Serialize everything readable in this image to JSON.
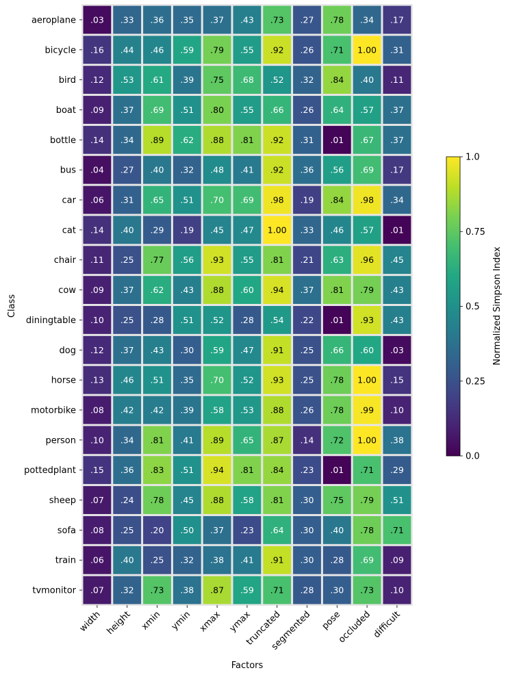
{
  "chart_data": {
    "type": "heatmap",
    "xlabel": "Factors",
    "ylabel": "Class",
    "x_categories": [
      "width",
      "height",
      "xmin",
      "ymin",
      "xmax",
      "ymax",
      "truncated",
      "segmented",
      "pose",
      "occluded",
      "difficult"
    ],
    "y_categories": [
      "aeroplane",
      "bicycle",
      "bird",
      "boat",
      "bottle",
      "bus",
      "car",
      "cat",
      "chair",
      "cow",
      "diningtable",
      "dog",
      "horse",
      "motorbike",
      "person",
      "pottedplant",
      "sheep",
      "sofa",
      "train",
      "tvmonitor"
    ],
    "values": [
      [
        0.03,
        0.33,
        0.36,
        0.35,
        0.37,
        0.43,
        0.73,
        0.27,
        0.78,
        0.34,
        0.17
      ],
      [
        0.16,
        0.44,
        0.46,
        0.59,
        0.79,
        0.55,
        0.92,
        0.26,
        0.71,
        1.0,
        0.31
      ],
      [
        0.12,
        0.53,
        0.61,
        0.39,
        0.75,
        0.68,
        0.52,
        0.32,
        0.84,
        0.4,
        0.11
      ],
      [
        0.09,
        0.37,
        0.69,
        0.51,
        0.8,
        0.55,
        0.66,
        0.26,
        0.64,
        0.57,
        0.37
      ],
      [
        0.14,
        0.34,
        0.89,
        0.62,
        0.88,
        0.81,
        0.92,
        0.31,
        0.01,
        0.67,
        0.37
      ],
      [
        0.04,
        0.27,
        0.4,
        0.32,
        0.48,
        0.41,
        0.92,
        0.36,
        0.56,
        0.69,
        0.17
      ],
      [
        0.06,
        0.31,
        0.65,
        0.51,
        0.7,
        0.69,
        0.98,
        0.19,
        0.84,
        0.98,
        0.34
      ],
      [
        0.14,
        0.4,
        0.29,
        0.19,
        0.45,
        0.47,
        1.0,
        0.33,
        0.46,
        0.57,
        0.01
      ],
      [
        0.11,
        0.25,
        0.77,
        0.56,
        0.93,
        0.55,
        0.81,
        0.21,
        0.63,
        0.96,
        0.45
      ],
      [
        0.09,
        0.37,
        0.62,
        0.43,
        0.88,
        0.6,
        0.94,
        0.37,
        0.81,
        0.79,
        0.43
      ],
      [
        0.1,
        0.25,
        0.28,
        0.51,
        0.52,
        0.28,
        0.54,
        0.22,
        0.01,
        0.93,
        0.43
      ],
      [
        0.12,
        0.37,
        0.43,
        0.3,
        0.59,
        0.47,
        0.91,
        0.25,
        0.66,
        0.6,
        0.03
      ],
      [
        0.13,
        0.46,
        0.51,
        0.35,
        0.7,
        0.52,
        0.93,
        0.25,
        0.78,
        1.0,
        0.15
      ],
      [
        0.08,
        0.42,
        0.42,
        0.39,
        0.58,
        0.53,
        0.88,
        0.26,
        0.78,
        0.99,
        0.1
      ],
      [
        0.1,
        0.34,
        0.81,
        0.41,
        0.89,
        0.65,
        0.87,
        0.14,
        0.72,
        1.0,
        0.38
      ],
      [
        0.15,
        0.36,
        0.83,
        0.51,
        0.94,
        0.81,
        0.84,
        0.23,
        0.01,
        0.71,
        0.29
      ],
      [
        0.07,
        0.24,
        0.78,
        0.45,
        0.88,
        0.58,
        0.81,
        0.3,
        0.75,
        0.79,
        0.51
      ],
      [
        0.08,
        0.25,
        0.2,
        0.5,
        0.37,
        0.23,
        0.64,
        0.3,
        0.4,
        0.78,
        0.71
      ],
      [
        0.06,
        0.4,
        0.25,
        0.32,
        0.38,
        0.41,
        0.91,
        0.3,
        0.28,
        0.69,
        0.09
      ],
      [
        0.07,
        0.32,
        0.73,
        0.38,
        0.87,
        0.59,
        0.71,
        0.28,
        0.3,
        0.73,
        0.1
      ]
    ],
    "value_format": "two decimals, leading zero dropped below 1",
    "colormap": "viridis",
    "colorbar": {
      "label": "Normalized Simpson Index",
      "range": [
        0,
        1
      ],
      "ticks": [
        0.0,
        0.25,
        0.5,
        0.75,
        1.0
      ],
      "tick_labels": [
        "0.0",
        "0.25",
        "0.5",
        "0.75",
        "1.0"
      ]
    },
    "cell_border_color": "#e6e6e6",
    "x_tick_rotation": "45deg"
  }
}
